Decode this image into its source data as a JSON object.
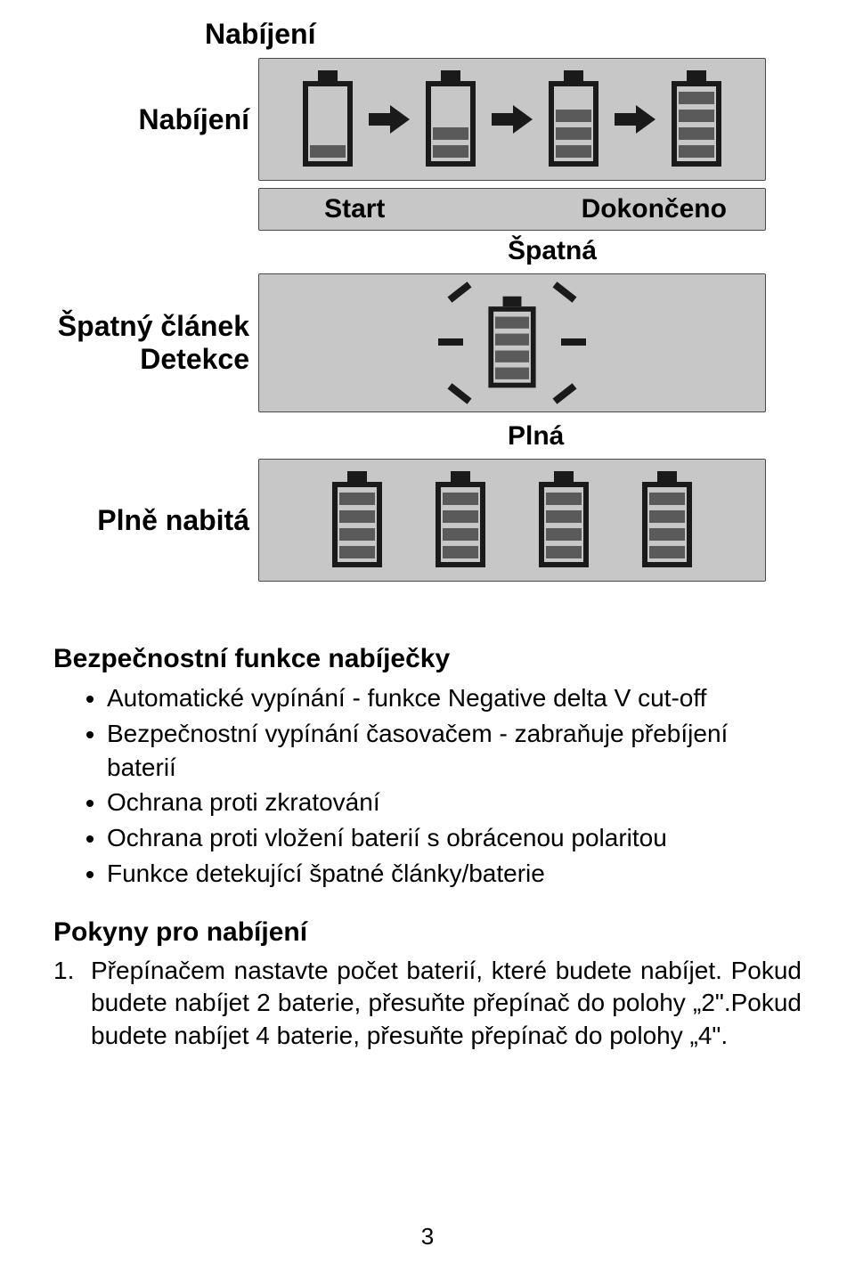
{
  "colors": {
    "page_bg": "#ffffff",
    "panel_bg": "#c7c7c7",
    "panel_border": "#4a4a4a",
    "battery_outline": "#1a1a1a",
    "segment_fill": "#5a5a5a",
    "text": "#000000"
  },
  "typography": {
    "heading_fontsize_pt": 24,
    "body_fontsize_pt": 21,
    "font_family": "Arial"
  },
  "labels": {
    "nabijeni_top": "Nabíjení",
    "nabijeni_left": "Nabíjení",
    "start": "Start",
    "dokonceno": "Dokončeno",
    "spatna": "Špatná",
    "spatny_clanek": "Špatný článek",
    "detekce": "Detekce",
    "plna": "Plná",
    "plne_nabita": "Plně nabitá"
  },
  "diagrams": {
    "charging_panel": {
      "type": "battery-sequence",
      "batteries": [
        {
          "segments": 1
        },
        {
          "segments": 2
        },
        {
          "segments": 3
        },
        {
          "segments": 4
        }
      ],
      "arrows_between": true
    },
    "bad_cell_panel": {
      "type": "flashing-battery",
      "battery": {
        "segments": 4
      },
      "rays": 6
    },
    "full_panel": {
      "type": "battery-row",
      "batteries": [
        {
          "segments": 4
        },
        {
          "segments": 4
        },
        {
          "segments": 4
        },
        {
          "segments": 4
        }
      ]
    }
  },
  "safety": {
    "title": "Bezpečnostní funkce nabíječky",
    "items": [
      "Automatické vypínání - funkce Negative delta V cut-off",
      "Bezpečnostní vypínání časovačem - zabraňuje přebíjení baterií",
      "Ochrana proti zkratování",
      "Ochrana proti vložení baterií s obrácenou polaritou",
      "Funkce detekující špatné články/baterie"
    ]
  },
  "instructions": {
    "title": "Pokyny pro nabíjení",
    "num": "1.",
    "text": "Přepínačem nastavte počet baterií, které budete nabíjet. Pokud budete nabíjet 2 baterie, přesuňte přepínač do polohy „2\".Pokud budete nabíjet 4 baterie, přesuňte přepínač do polohy „4\"."
  },
  "page_number": "3"
}
